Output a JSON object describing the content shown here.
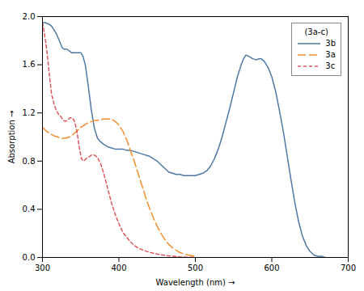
{
  "chart_data": {
    "type": "line",
    "xlabel": "Wavelength (nm)",
    "ylabel": "Absorption",
    "xlim": [
      300,
      700
    ],
    "ylim": [
      0,
      2
    ],
    "xticks": [
      300,
      400,
      500,
      600,
      700
    ],
    "yticks": [
      {
        "value": 0,
        "label": "0.0"
      },
      0.4,
      0.8,
      1.2,
      1.6,
      {
        "value": 2.0,
        "label": "2.0"
      }
    ],
    "grid": false,
    "legend": "upper right",
    "legend_title": "(3a-c)",
    "series": [
      {
        "name": "3b",
        "line_style": "solid",
        "x": [
          300,
          302,
          304,
          306,
          308,
          310,
          312,
          314,
          316,
          318,
          320,
          322,
          324,
          326,
          328,
          330,
          332,
          334,
          336,
          338,
          340,
          342,
          344,
          346,
          348,
          350,
          353,
          356,
          360,
          364,
          368,
          372,
          376,
          380,
          385,
          390,
          395,
          400,
          405,
          410,
          415,
          420,
          425,
          430,
          435,
          440,
          445,
          450,
          455,
          460,
          465,
          470,
          475,
          480,
          485,
          490,
          495,
          500,
          505,
          510,
          515,
          520,
          525,
          530,
          535,
          540,
          545,
          550,
          555,
          560,
          563,
          566,
          570,
          575,
          580,
          583,
          586,
          590,
          595,
          600,
          605,
          610,
          615,
          620,
          625,
          630,
          635,
          640,
          645,
          650,
          655,
          660,
          665,
          670
        ],
        "values": [
          1.95,
          1.95,
          1.95,
          1.94,
          1.94,
          1.93,
          1.92,
          1.9,
          1.88,
          1.86,
          1.83,
          1.8,
          1.77,
          1.74,
          1.73,
          1.73,
          1.73,
          1.72,
          1.71,
          1.7,
          1.7,
          1.7,
          1.7,
          1.7,
          1.7,
          1.7,
          1.67,
          1.6,
          1.42,
          1.22,
          1.07,
          0.99,
          0.96,
          0.94,
          0.92,
          0.91,
          0.9,
          0.9,
          0.9,
          0.89,
          0.89,
          0.88,
          0.87,
          0.86,
          0.85,
          0.84,
          0.82,
          0.8,
          0.77,
          0.74,
          0.71,
          0.7,
          0.69,
          0.69,
          0.68,
          0.68,
          0.68,
          0.68,
          0.69,
          0.7,
          0.72,
          0.76,
          0.82,
          0.9,
          1.0,
          1.12,
          1.24,
          1.37,
          1.5,
          1.6,
          1.65,
          1.68,
          1.67,
          1.65,
          1.64,
          1.65,
          1.65,
          1.63,
          1.58,
          1.5,
          1.38,
          1.22,
          1.05,
          0.85,
          0.65,
          0.46,
          0.3,
          0.18,
          0.1,
          0.05,
          0.02,
          0.01,
          0.01,
          0.0
        ]
      },
      {
        "name": "3a",
        "line_style": "long_dash",
        "x": [
          300,
          305,
          310,
          315,
          320,
          325,
          330,
          335,
          340,
          345,
          350,
          355,
          360,
          365,
          370,
          375,
          380,
          385,
          390,
          395,
          400,
          405,
          410,
          415,
          420,
          425,
          430,
          435,
          440,
          445,
          450,
          455,
          460,
          465,
          470,
          475,
          480,
          485,
          490,
          495,
          500
        ],
        "values": [
          1.08,
          1.05,
          1.03,
          1.01,
          1.0,
          0.99,
          0.99,
          1.0,
          1.02,
          1.05,
          1.08,
          1.1,
          1.12,
          1.13,
          1.14,
          1.14,
          1.15,
          1.15,
          1.15,
          1.13,
          1.1,
          1.05,
          0.98,
          0.89,
          0.8,
          0.7,
          0.6,
          0.5,
          0.41,
          0.33,
          0.26,
          0.2,
          0.15,
          0.11,
          0.08,
          0.06,
          0.04,
          0.03,
          0.02,
          0.015,
          0.01
        ]
      },
      {
        "name": "3c",
        "line_style": "short_dash",
        "x": [
          300,
          302,
          304,
          306,
          308,
          310,
          312,
          315,
          318,
          321,
          324,
          327,
          330,
          333,
          336,
          339,
          342,
          345,
          348,
          351,
          354,
          357,
          360,
          364,
          368,
          372,
          376,
          380,
          385,
          390,
          395,
          400,
          405,
          410,
          415,
          420,
          425,
          430,
          435,
          440,
          445,
          450,
          455,
          460,
          465,
          470,
          480,
          490,
          500
        ],
        "values": [
          1.95,
          1.88,
          1.8,
          1.7,
          1.58,
          1.46,
          1.35,
          1.28,
          1.22,
          1.19,
          1.17,
          1.14,
          1.13,
          1.14,
          1.16,
          1.16,
          1.13,
          1.05,
          0.92,
          0.82,
          0.8,
          0.82,
          0.83,
          0.85,
          0.85,
          0.83,
          0.78,
          0.7,
          0.58,
          0.46,
          0.36,
          0.28,
          0.21,
          0.17,
          0.13,
          0.1,
          0.08,
          0.065,
          0.053,
          0.043,
          0.035,
          0.028,
          0.022,
          0.018,
          0.014,
          0.01,
          0.005,
          0.002,
          0.001
        ]
      }
    ]
  }
}
